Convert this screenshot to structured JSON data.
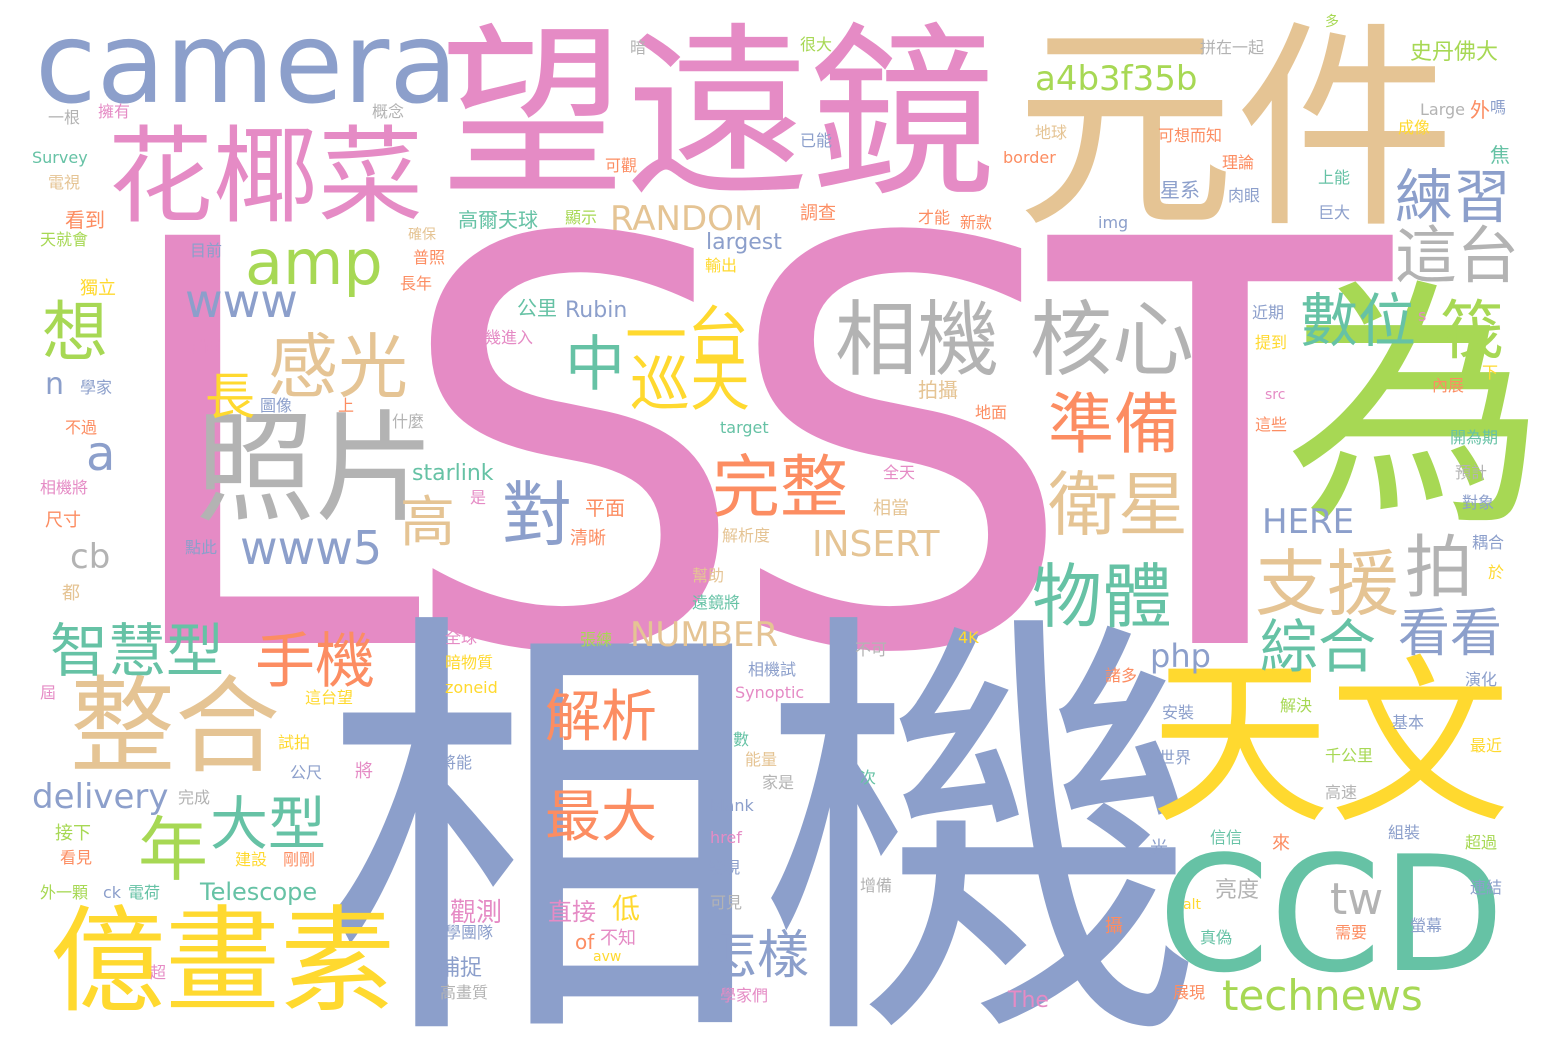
{
  "palette": {
    "pink": "#e58bc5",
    "slate": "#8c9fcb",
    "green": "#a7d854",
    "orange": "#fc8d62",
    "teal": "#66c2a5",
    "yellow": "#ffd92f",
    "tan": "#e5c494",
    "gray": "#b3b3b3"
  },
  "words": [
    {
      "text": "LSST",
      "color": "pink"
    },
    {
      "text": "相機",
      "color": "slate"
    },
    {
      "text": "望遠鏡",
      "color": "pink"
    },
    {
      "text": "元件",
      "color": "tan"
    },
    {
      "text": "camera",
      "color": "slate"
    },
    {
      "text": "花椰菜",
      "color": "pink"
    },
    {
      "text": "為",
      "color": "green"
    },
    {
      "text": "天文",
      "color": "yellow"
    },
    {
      "text": "CCD",
      "color": "teal"
    },
    {
      "text": "照片",
      "color": "gray"
    },
    {
      "text": "億畫素",
      "color": "yellow"
    },
    {
      "text": "整合",
      "color": "tan"
    },
    {
      "text": "相機",
      "color": "gray"
    },
    {
      "text": "核心",
      "color": "gray"
    },
    {
      "text": "amp",
      "color": "green"
    },
    {
      "text": "感光",
      "color": "tan"
    },
    {
      "text": "www",
      "color": "slate"
    },
    {
      "text": "一台",
      "color": "yellow"
    },
    {
      "text": "中",
      "color": "teal"
    },
    {
      "text": "巡天",
      "color": "yellow"
    },
    {
      "text": "數位",
      "color": "teal"
    },
    {
      "text": "筏",
      "color": "green"
    },
    {
      "text": "想",
      "color": "green"
    },
    {
      "text": "練習",
      "color": "slate"
    },
    {
      "text": "這台",
      "color": "gray"
    },
    {
      "text": "a4b3f35b",
      "color": "green"
    },
    {
      "text": "準備",
      "color": "orange"
    },
    {
      "text": "衛星",
      "color": "tan"
    },
    {
      "text": "完整",
      "color": "orange"
    },
    {
      "text": "對",
      "color": "slate"
    },
    {
      "text": "高",
      "color": "tan"
    },
    {
      "text": "長",
      "color": "yellow"
    },
    {
      "text": "a",
      "color": "slate"
    },
    {
      "text": "www5",
      "color": "slate"
    },
    {
      "text": "物體",
      "color": "teal"
    },
    {
      "text": "支援",
      "color": "tan"
    },
    {
      "text": "拍",
      "color": "gray"
    },
    {
      "text": "綜合",
      "color": "teal"
    },
    {
      "text": "看看",
      "color": "slate"
    },
    {
      "text": "智慧型",
      "color": "teal"
    },
    {
      "text": "手機",
      "color": "orange"
    },
    {
      "text": "大型",
      "color": "teal"
    },
    {
      "text": "年",
      "color": "green"
    },
    {
      "text": "解析",
      "color": "orange"
    },
    {
      "text": "最大",
      "color": "orange"
    },
    {
      "text": "怎樣",
      "color": "slate"
    },
    {
      "text": "tw",
      "color": "gray"
    },
    {
      "text": "technews",
      "color": "green"
    },
    {
      "text": "delivery",
      "color": "slate"
    },
    {
      "text": "RANDOM",
      "color": "tan"
    },
    {
      "text": "INSERT",
      "color": "tan"
    },
    {
      "text": "NUMBER",
      "color": "tan"
    },
    {
      "text": "HERE",
      "color": "slate"
    },
    {
      "text": "php",
      "color": "slate"
    },
    {
      "text": "cb",
      "color": "gray"
    },
    {
      "text": "n",
      "color": "slate"
    },
    {
      "text": "starlink",
      "color": "teal"
    },
    {
      "text": "Telescope",
      "color": "teal"
    },
    {
      "text": "Rubin",
      "color": "slate"
    },
    {
      "text": "largest",
      "color": "slate"
    },
    {
      "text": "觀測",
      "color": "pink"
    },
    {
      "text": "直接",
      "color": "pink"
    },
    {
      "text": "低",
      "color": "yellow"
    },
    {
      "text": "of",
      "color": "orange"
    },
    {
      "text": "不知",
      "color": "pink"
    },
    {
      "text": "捕捉",
      "color": "slate"
    },
    {
      "text": "高爾夫球",
      "color": "teal"
    },
    {
      "text": "星系",
      "color": "slate"
    },
    {
      "text": "史丹佛大",
      "color": "green"
    },
    {
      "text": "The",
      "color": "pink"
    },
    {
      "text": "亮度",
      "color": "gray"
    },
    {
      "text": "平面",
      "color": "orange"
    },
    {
      "text": "清晰",
      "color": "orange"
    },
    {
      "text": "拍攝",
      "color": "tan"
    },
    {
      "text": "公里",
      "color": "teal"
    },
    {
      "text": "什麼",
      "color": "gray"
    },
    {
      "text": "target",
      "color": "teal"
    },
    {
      "text": "img",
      "color": "slate"
    },
    {
      "text": "border",
      "color": "orange"
    },
    {
      "text": "Large",
      "color": "gray"
    },
    {
      "text": "Survey",
      "color": "teal"
    },
    {
      "text": "Synoptic",
      "color": "pink"
    },
    {
      "text": "zoneid",
      "color": "yellow"
    },
    {
      "text": "href",
      "color": "pink"
    },
    {
      "text": "blank",
      "color": "slate"
    },
    {
      "text": "alt",
      "color": "yellow"
    },
    {
      "text": "avw",
      "color": "yellow"
    },
    {
      "text": "src",
      "color": "pink"
    },
    {
      "text": "s",
      "color": "pink"
    },
    {
      "text": "4K",
      "color": "yellow"
    },
    {
      "text": "看到",
      "color": "orange"
    },
    {
      "text": "天就會",
      "color": "green"
    },
    {
      "text": "目前",
      "color": "slate"
    },
    {
      "text": "獨立",
      "color": "yellow"
    },
    {
      "text": "宇宙",
      "color": "pink"
    },
    {
      "text": "學家",
      "color": "slate"
    },
    {
      "text": "不過",
      "color": "orange"
    },
    {
      "text": "相機將",
      "color": "pink"
    },
    {
      "text": "尺寸",
      "color": "orange"
    },
    {
      "text": "圖像",
      "color": "slate"
    },
    {
      "text": "點此",
      "color": "slate"
    },
    {
      "text": "全天",
      "color": "pink"
    },
    {
      "text": "相當",
      "color": "tan"
    },
    {
      "text": "解析度",
      "color": "tan"
    },
    {
      "text": "幫助",
      "color": "tan"
    },
    {
      "text": "遠鏡將",
      "color": "teal"
    },
    {
      "text": "不可",
      "color": "gray"
    },
    {
      "text": "相機試",
      "color": "slate"
    },
    {
      "text": "安裝",
      "color": "slate"
    },
    {
      "text": "全世界",
      "color": "slate"
    },
    {
      "text": "千公里",
      "color": "green"
    },
    {
      "text": "基本",
      "color": "slate"
    },
    {
      "text": "解決",
      "color": "green"
    },
    {
      "text": "最近",
      "color": "yellow"
    },
    {
      "text": "超過",
      "color": "green"
    },
    {
      "text": "連結",
      "color": "slate"
    },
    {
      "text": "螢幕",
      "color": "slate"
    },
    {
      "text": "需要",
      "color": "orange"
    },
    {
      "text": "真偽",
      "color": "teal"
    },
    {
      "text": "展現",
      "color": "orange"
    },
    {
      "text": "學家們",
      "color": "pink"
    },
    {
      "text": "高畫質",
      "color": "gray"
    },
    {
      "text": "學團隊",
      "color": "slate"
    },
    {
      "text": "確保",
      "color": "tan"
    },
    {
      "text": "輸出",
      "color": "yellow"
    },
    {
      "text": "新款",
      "color": "orange"
    },
    {
      "text": "才能",
      "color": "orange"
    },
    {
      "text": "調查",
      "color": "orange"
    },
    {
      "text": "顯示",
      "color": "green"
    },
    {
      "text": "肉眼",
      "color": "slate"
    },
    {
      "text": "巨大",
      "color": "slate"
    },
    {
      "text": "上能",
      "color": "teal"
    },
    {
      "text": "理論",
      "color": "orange"
    },
    {
      "text": "可想而知",
      "color": "orange"
    },
    {
      "text": "地球",
      "color": "tan"
    },
    {
      "text": "已能",
      "color": "slate"
    },
    {
      "text": "很大",
      "color": "green"
    },
    {
      "text": "拼在一起",
      "color": "gray"
    },
    {
      "text": "嗎",
      "color": "slate"
    },
    {
      "text": "外",
      "color": "orange"
    },
    {
      "text": "焦",
      "color": "teal"
    },
    {
      "text": "成像",
      "color": "yellow"
    },
    {
      "text": "下",
      "color": "yellow"
    },
    {
      "text": "內展",
      "color": "orange"
    },
    {
      "text": "開為期",
      "color": "teal"
    },
    {
      "text": "預計",
      "color": "gray"
    },
    {
      "text": "對象",
      "color": "slate"
    },
    {
      "text": "耦合",
      "color": "slate"
    },
    {
      "text": "於",
      "color": "yellow"
    },
    {
      "text": "演化",
      "color": "slate"
    },
    {
      "text": "近期",
      "color": "slate"
    },
    {
      "text": "提到",
      "color": "yellow"
    },
    {
      "text": "這些",
      "color": "orange"
    },
    {
      "text": "地面",
      "color": "orange"
    },
    {
      "text": "是",
      "color": "pink"
    },
    {
      "text": "將",
      "color": "pink"
    },
    {
      "text": "將能",
      "color": "slate"
    },
    {
      "text": "電荷",
      "color": "teal"
    },
    {
      "text": "ck",
      "color": "slate"
    },
    {
      "text": "外一顆",
      "color": "green"
    },
    {
      "text": "看見",
      "color": "orange"
    },
    {
      "text": "接下",
      "color": "green"
    },
    {
      "text": "建設",
      "color": "yellow"
    },
    {
      "text": "剛剛",
      "color": "orange"
    },
    {
      "text": "公尺",
      "color": "slate"
    },
    {
      "text": "試拍",
      "color": "yellow"
    },
    {
      "text": "完成",
      "color": "gray"
    },
    {
      "text": "這台望",
      "color": "yellow"
    },
    {
      "text": "全球",
      "color": "pink"
    },
    {
      "text": "張練",
      "color": "green"
    },
    {
      "text": "暗物質",
      "color": "yellow"
    },
    {
      "text": "數",
      "color": "teal"
    },
    {
      "text": "能量",
      "color": "tan"
    },
    {
      "text": "發現",
      "color": "slate"
    },
    {
      "text": "可見",
      "color": "gray"
    },
    {
      "text": "信信",
      "color": "teal"
    },
    {
      "text": "來",
      "color": "orange"
    },
    {
      "text": "組裝",
      "color": "slate"
    },
    {
      "text": "高速",
      "color": "gray"
    },
    {
      "text": "次",
      "color": "teal"
    },
    {
      "text": "暗",
      "color": "gray"
    },
    {
      "text": "擁有",
      "color": "pink"
    },
    {
      "text": "一根",
      "color": "gray"
    },
    {
      "text": "概念",
      "color": "gray"
    },
    {
      "text": "電視",
      "color": "tan"
    },
    {
      "text": "可觀",
      "color": "orange"
    },
    {
      "text": "普照",
      "color": "orange"
    },
    {
      "text": "長年",
      "color": "orange"
    },
    {
      "text": "幾進入",
      "color": "pink"
    },
    {
      "text": "都",
      "color": "tan"
    },
    {
      "text": "屆",
      "color": "pink"
    },
    {
      "text": "光",
      "color": "slate"
    },
    {
      "text": "諸多",
      "color": "orange"
    },
    {
      "text": "超",
      "color": "pink"
    },
    {
      "text": "多",
      "color": "green"
    },
    {
      "text": "上",
      "color": "orange"
    },
    {
      "text": "家是",
      "color": "gray"
    },
    {
      "text": "增備",
      "color": "gray"
    },
    {
      "text": "攝",
      "color": "orange"
    }
  ]
}
